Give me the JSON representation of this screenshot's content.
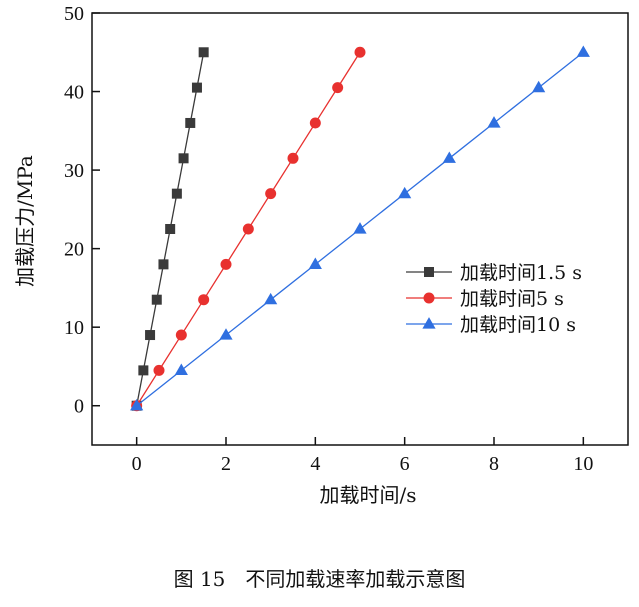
{
  "chart_data": {
    "type": "line",
    "xlabel": "加载时间/s",
    "ylabel": "加载压力/MPa",
    "xlim": [
      -1,
      11
    ],
    "ylim": [
      -5,
      50
    ],
    "xticks": [
      0,
      2,
      4,
      6,
      8,
      10
    ],
    "yticks": [
      0,
      10,
      20,
      30,
      40,
      50
    ],
    "grid": false,
    "legend_position": "middle-right",
    "series": [
      {
        "name": "加载时间1.5 s",
        "color": "#3a3a3a",
        "marker": "square",
        "x": [
          0,
          0.15,
          0.3,
          0.45,
          0.6,
          0.75,
          0.9,
          1.05,
          1.2,
          1.35,
          1.5
        ],
        "y": [
          0,
          4.5,
          9,
          13.5,
          18,
          22.5,
          27,
          31.5,
          36,
          40.5,
          45
        ]
      },
      {
        "name": "加载时间5 s",
        "color": "#e8312f",
        "marker": "circle",
        "x": [
          0,
          0.5,
          1,
          1.5,
          2,
          2.5,
          3,
          3.5,
          4,
          4.5,
          5
        ],
        "y": [
          0,
          4.5,
          9,
          13.5,
          18,
          22.5,
          27,
          31.5,
          36,
          40.5,
          45
        ]
      },
      {
        "name": "加载时间10 s",
        "color": "#2f6fe0",
        "marker": "triangle",
        "x": [
          0,
          1,
          2,
          3,
          4,
          5,
          6,
          7,
          8,
          9,
          10
        ],
        "y": [
          0,
          4.5,
          9,
          13.5,
          18,
          22.5,
          27,
          31.5,
          36,
          40.5,
          45
        ]
      }
    ]
  },
  "caption": "图 15　不同加载速率加载示意图"
}
